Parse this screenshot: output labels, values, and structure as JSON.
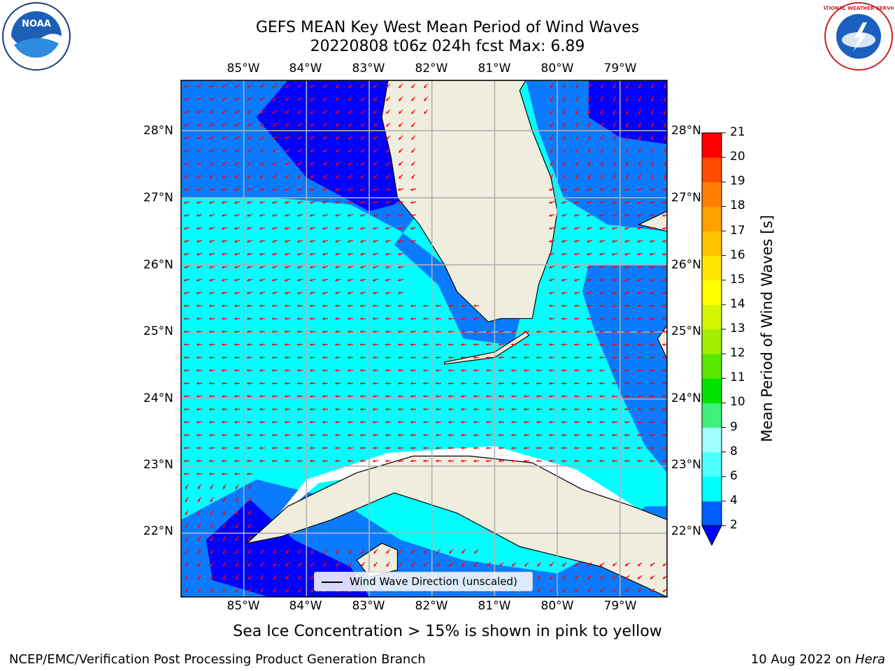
{
  "header": {
    "title_line1": "GEFS MEAN Key West Mean Period of Wind Waves",
    "title_line2": "20220808 t06z 024h fcst   Max: 6.89"
  },
  "logos": {
    "left": {
      "text": "NOAA",
      "icon": "noaa-logo"
    },
    "right": {
      "text": "NATIONAL WEATHER SERVICE",
      "icon": "nws-logo"
    }
  },
  "map": {
    "region": "Florida / Cuba / Gulf of Mexico",
    "longitude_ticks": [
      "85°W",
      "84°W",
      "83°W",
      "82°W",
      "81°W",
      "80°W",
      "79°W"
    ],
    "latitude_ticks": [
      "28°N",
      "27°N",
      "26°N",
      "25°N",
      "24°N",
      "23°N",
      "22°N"
    ],
    "lon_range": [
      -86.0,
      -78.25
    ],
    "lat_range": [
      21.05,
      28.75
    ],
    "colors": {
      "land": "#efedde",
      "level_2_4": "#0a7bff",
      "level_4_6": "#00ffff",
      "level_below_2": "#0000ff",
      "arrows": "#ff0000",
      "grid": "#b0b0b0"
    },
    "legend": {
      "label": "Wind Wave Direction (unscaled)"
    }
  },
  "colorbar": {
    "label": "Mean Period of Wind Waves [s]",
    "tick_labels": [
      "2",
      "4",
      "6",
      "8",
      "9",
      "10",
      "11",
      "12",
      "13",
      "14",
      "15",
      "16",
      "17",
      "18",
      "19",
      "20",
      "21"
    ],
    "level_colors": [
      "#0060ff",
      "#00ffff",
      "#4cffff",
      "#a0ffff",
      "#3ff07d",
      "#00e400",
      "#5ae800",
      "#a2ef00",
      "#d3f500",
      "#ffff00",
      "#ffe600",
      "#ffc300",
      "#ffa000",
      "#ff7d00",
      "#ff4c00",
      "#ff0000"
    ],
    "extend_color": "#0000ff"
  },
  "note": "Sea Ice Concentration > 15% is shown in pink to yellow",
  "footer": {
    "left": "NCEP/EMC/Verification Post Processing Product Generation Branch",
    "right_date": "10 Aug 2022 on ",
    "right_host": "Hera"
  }
}
